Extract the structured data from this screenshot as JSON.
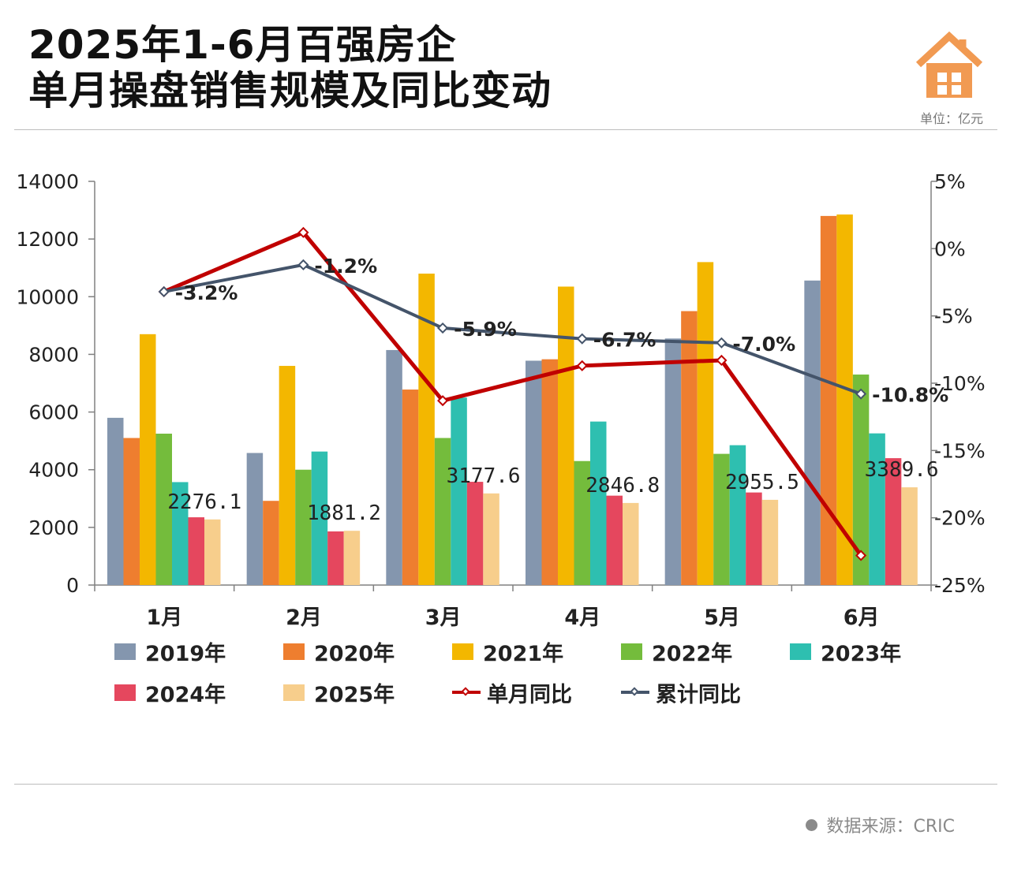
{
  "header": {
    "title_line1": "2025年1-6月百强房企",
    "title_line2": "单月操盘销售规模及同比变动",
    "unit": "单位：亿元",
    "source": "数据来源：CRIC"
  },
  "colors": {
    "2019年": "#8496ae",
    "2020年": "#ee7e2f",
    "2021年": "#f3b700",
    "2022年": "#74bc3c",
    "2023年": "#2ebfb0",
    "2024年": "#e5475e",
    "2025年": "#f7ce8c",
    "单月同比": "#c00000",
    "累计同比": "#44546a",
    "logo": "#f19a52"
  },
  "chart_data": {
    "type": "bar",
    "categories": [
      "1月",
      "2月",
      "3月",
      "4月",
      "5月",
      "6月"
    ],
    "series": [
      {
        "name": "2019年",
        "values": [
          5800,
          4580,
          8150,
          7780,
          8550,
          10560
        ]
      },
      {
        "name": "2020年",
        "values": [
          5100,
          2920,
          6780,
          7830,
          9500,
          12800
        ]
      },
      {
        "name": "2021年",
        "values": [
          8700,
          7600,
          10800,
          10350,
          11200,
          12850
        ]
      },
      {
        "name": "2022年",
        "values": [
          5250,
          4000,
          5100,
          4300,
          4550,
          7300
        ]
      },
      {
        "name": "2023年",
        "values": [
          3570,
          4630,
          6500,
          5670,
          4850,
          5260
        ]
      },
      {
        "name": "2024年",
        "values": [
          2350,
          1860,
          3580,
          3100,
          3210,
          4400
        ]
      },
      {
        "name": "2025年",
        "values": [
          2276.1,
          1881.2,
          3177.6,
          2846.8,
          2955.5,
          3389.6
        ]
      }
    ],
    "line_series": [
      {
        "name": "单月同比",
        "axis": "right",
        "values": [
          -3.2,
          1.2,
          -11.3,
          -8.7,
          -8.3,
          -22.8
        ]
      },
      {
        "name": "累计同比",
        "axis": "right",
        "values": [
          -3.2,
          -1.2,
          -5.9,
          -6.7,
          -7.0,
          -10.8
        ]
      }
    ],
    "bar_labels": [
      "2276.1",
      "1881.2",
      "3177.6",
      "2846.8",
      "2955.5",
      "3389.6"
    ],
    "cumulative_labels": [
      "-3.2%",
      "-1.2%",
      "-5.9%",
      "-6.7%",
      "-7.0%",
      "-10.8%"
    ],
    "y_left": {
      "min": 0,
      "max": 14000,
      "ticks": [
        "0",
        "2000",
        "4000",
        "6000",
        "8000",
        "10000",
        "12000",
        "14000"
      ]
    },
    "y_right": {
      "min": -25,
      "max": 5,
      "ticks": [
        "-25%",
        "-20%",
        "-15%",
        "-10%",
        "-5%",
        "0%",
        "5%"
      ]
    },
    "legend": {
      "position": "bottom"
    }
  }
}
